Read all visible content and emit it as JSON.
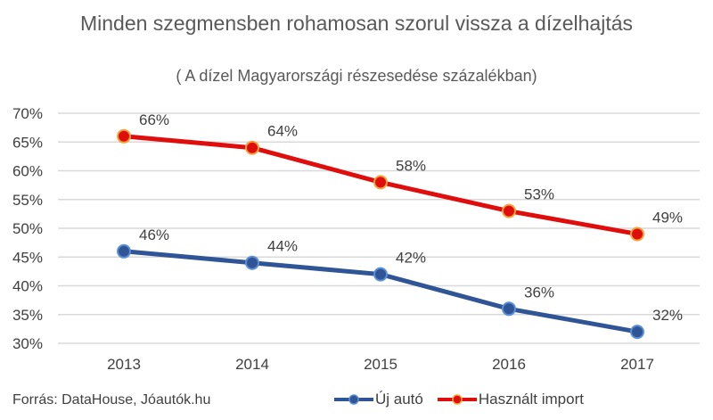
{
  "chart_data": {
    "type": "line",
    "title": "Minden szegmensben rohamosan szorul vissza a dízelhajtás",
    "subtitle": "( A dízel Magyarországi részesedése százalékban)",
    "categories": [
      "2013",
      "2014",
      "2015",
      "2016",
      "2017"
    ],
    "ylim": [
      30,
      70
    ],
    "yticks": [
      "30%",
      "35%",
      "40%",
      "45%",
      "50%",
      "55%",
      "60%",
      "65%",
      "70%"
    ],
    "grid": true,
    "legend_position": "bottom",
    "series": [
      {
        "name": "Új autó",
        "color": "#2f5597",
        "marker_edge": "#5b8fd6",
        "values": [
          46,
          44,
          42,
          36,
          32
        ],
        "labels": [
          "46%",
          "44%",
          "42%",
          "36%",
          "32%"
        ]
      },
      {
        "name": "Használt import",
        "color": "#e00d0d",
        "marker_edge": "#f4a23a",
        "values": [
          66,
          64,
          58,
          53,
          49
        ],
        "labels": [
          "66%",
          "64%",
          "58%",
          "53%",
          "49%"
        ]
      }
    ],
    "source": "Forrás: DataHouse, Jóautók.hu"
  }
}
